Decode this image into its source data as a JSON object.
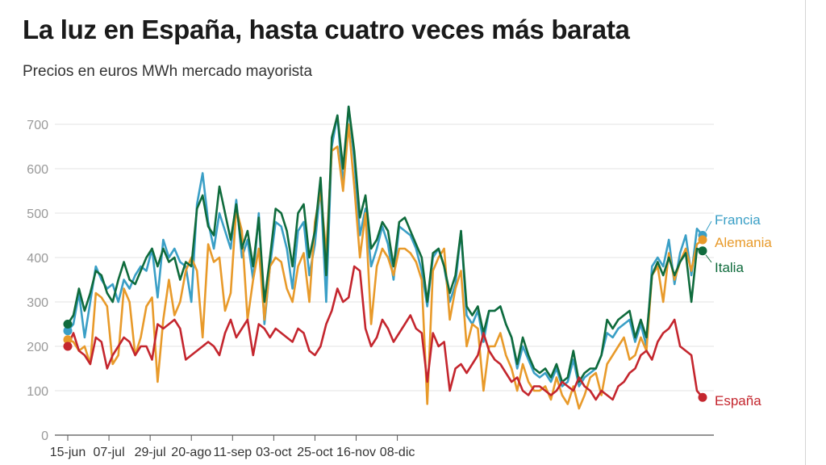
{
  "title": "La luz en España, hasta cuatro veces más barata",
  "subtitle": "Precios en euros MWh mercado mayorista",
  "colors": {
    "Francia": "#3a9fc6",
    "Alemania": "#e89a2a",
    "Italia": "#0f6b3c",
    "España": "#c4262e",
    "grid": "#e3e3e3"
  },
  "chart_data": {
    "type": "line",
    "title": "La luz en España, hasta cuatro veces más barata",
    "subtitle": "Precios en euros MWh mercado mayorista",
    "xlabel": "",
    "ylabel": "",
    "ylim": [
      0,
      700
    ],
    "y_ticks": [
      0,
      100,
      200,
      300,
      400,
      500,
      600,
      700
    ],
    "x_ticks": [
      "15-jun",
      "07-jul",
      "29-jul",
      "20-ago",
      "11-sep",
      "03-oct",
      "25-oct",
      "16-nov",
      "08-dic"
    ],
    "x_start": "15-jun",
    "x_interval_days": 3,
    "grid": true,
    "legend": "end-labels-right",
    "series": [
      {
        "name": "Francia",
        "values": [
          235,
          250,
          320,
          220,
          300,
          380,
          350,
          330,
          340,
          300,
          350,
          330,
          360,
          380,
          370,
          420,
          310,
          440,
          400,
          420,
          390,
          380,
          300,
          520,
          590,
          480,
          420,
          500,
          460,
          420,
          530,
          400,
          440,
          350,
          500,
          250,
          380,
          480,
          470,
          420,
          330,
          460,
          480,
          360,
          430,
          560,
          300,
          650,
          720,
          560,
          740,
          620,
          450,
          510,
          380,
          420,
          470,
          430,
          350,
          470,
          460,
          450,
          420,
          370,
          290,
          400,
          420,
          380,
          300,
          340,
          460,
          270,
          250,
          280,
          210,
          280,
          280,
          290,
          250,
          220,
          150,
          200,
          170,
          140,
          130,
          140,
          120,
          150,
          110,
          120,
          170,
          110,
          130,
          140,
          150,
          180,
          230,
          220,
          240,
          250,
          260,
          210,
          250,
          200,
          380,
          400,
          380,
          440,
          340,
          410,
          450,
          360,
          465,
          450
        ]
      },
      {
        "name": "Alemania",
        "values": [
          215,
          210,
          190,
          200,
          160,
          320,
          310,
          290,
          160,
          180,
          330,
          300,
          180,
          220,
          290,
          310,
          120,
          260,
          350,
          270,
          300,
          370,
          400,
          370,
          220,
          430,
          390,
          400,
          280,
          320,
          510,
          460,
          260,
          350,
          420,
          260,
          380,
          400,
          390,
          330,
          300,
          380,
          410,
          300,
          480,
          550,
          410,
          640,
          650,
          550,
          700,
          560,
          400,
          500,
          250,
          380,
          420,
          400,
          360,
          420,
          420,
          410,
          390,
          350,
          70,
          370,
          400,
          420,
          260,
          330,
          370,
          200,
          250,
          240,
          100,
          200,
          200,
          230,
          180,
          150,
          100,
          160,
          120,
          100,
          100,
          110,
          80,
          130,
          90,
          70,
          110,
          60,
          90,
          130,
          140,
          90,
          160,
          180,
          200,
          220,
          170,
          180,
          220,
          190,
          360,
          380,
          300,
          410,
          350,
          390,
          420,
          370,
          430,
          440
        ]
      },
      {
        "name": "Italia",
        "values": [
          250,
          270,
          330,
          280,
          320,
          370,
          360,
          320,
          300,
          350,
          390,
          350,
          340,
          370,
          400,
          420,
          380,
          420,
          390,
          400,
          350,
          390,
          380,
          510,
          540,
          470,
          450,
          560,
          500,
          440,
          520,
          420,
          460,
          380,
          490,
          300,
          400,
          510,
          500,
          460,
          380,
          500,
          520,
          400,
          460,
          580,
          360,
          670,
          720,
          600,
          740,
          640,
          490,
          540,
          420,
          440,
          480,
          460,
          380,
          480,
          490,
          460,
          430,
          400,
          300,
          410,
          420,
          380,
          320,
          360,
          460,
          290,
          270,
          290,
          230,
          280,
          280,
          290,
          250,
          220,
          160,
          220,
          180,
          150,
          140,
          150,
          130,
          160,
          120,
          130,
          190,
          120,
          140,
          150,
          150,
          180,
          260,
          240,
          260,
          270,
          280,
          220,
          260,
          220,
          360,
          390,
          360,
          400,
          360,
          390,
          410,
          300,
          420,
          415
        ]
      },
      {
        "name": "España",
        "values": [
          200,
          230,
          190,
          180,
          160,
          220,
          210,
          150,
          180,
          200,
          220,
          210,
          180,
          200,
          200,
          170,
          250,
          240,
          250,
          260,
          240,
          170,
          180,
          190,
          200,
          210,
          200,
          180,
          230,
          260,
          220,
          240,
          260,
          180,
          250,
          240,
          220,
          240,
          230,
          220,
          210,
          240,
          230,
          190,
          180,
          200,
          250,
          280,
          330,
          300,
          310,
          380,
          370,
          240,
          200,
          220,
          260,
          240,
          210,
          230,
          250,
          270,
          240,
          230,
          120,
          230,
          200,
          210,
          100,
          150,
          160,
          140,
          160,
          180,
          230,
          190,
          170,
          160,
          140,
          120,
          130,
          100,
          90,
          110,
          110,
          100,
          90,
          100,
          120,
          110,
          100,
          130,
          110,
          100,
          80,
          100,
          90,
          80,
          110,
          120,
          140,
          150,
          180,
          190,
          170,
          210,
          230,
          240,
          260,
          200,
          190,
          180,
          100,
          85
        ]
      }
    ]
  }
}
